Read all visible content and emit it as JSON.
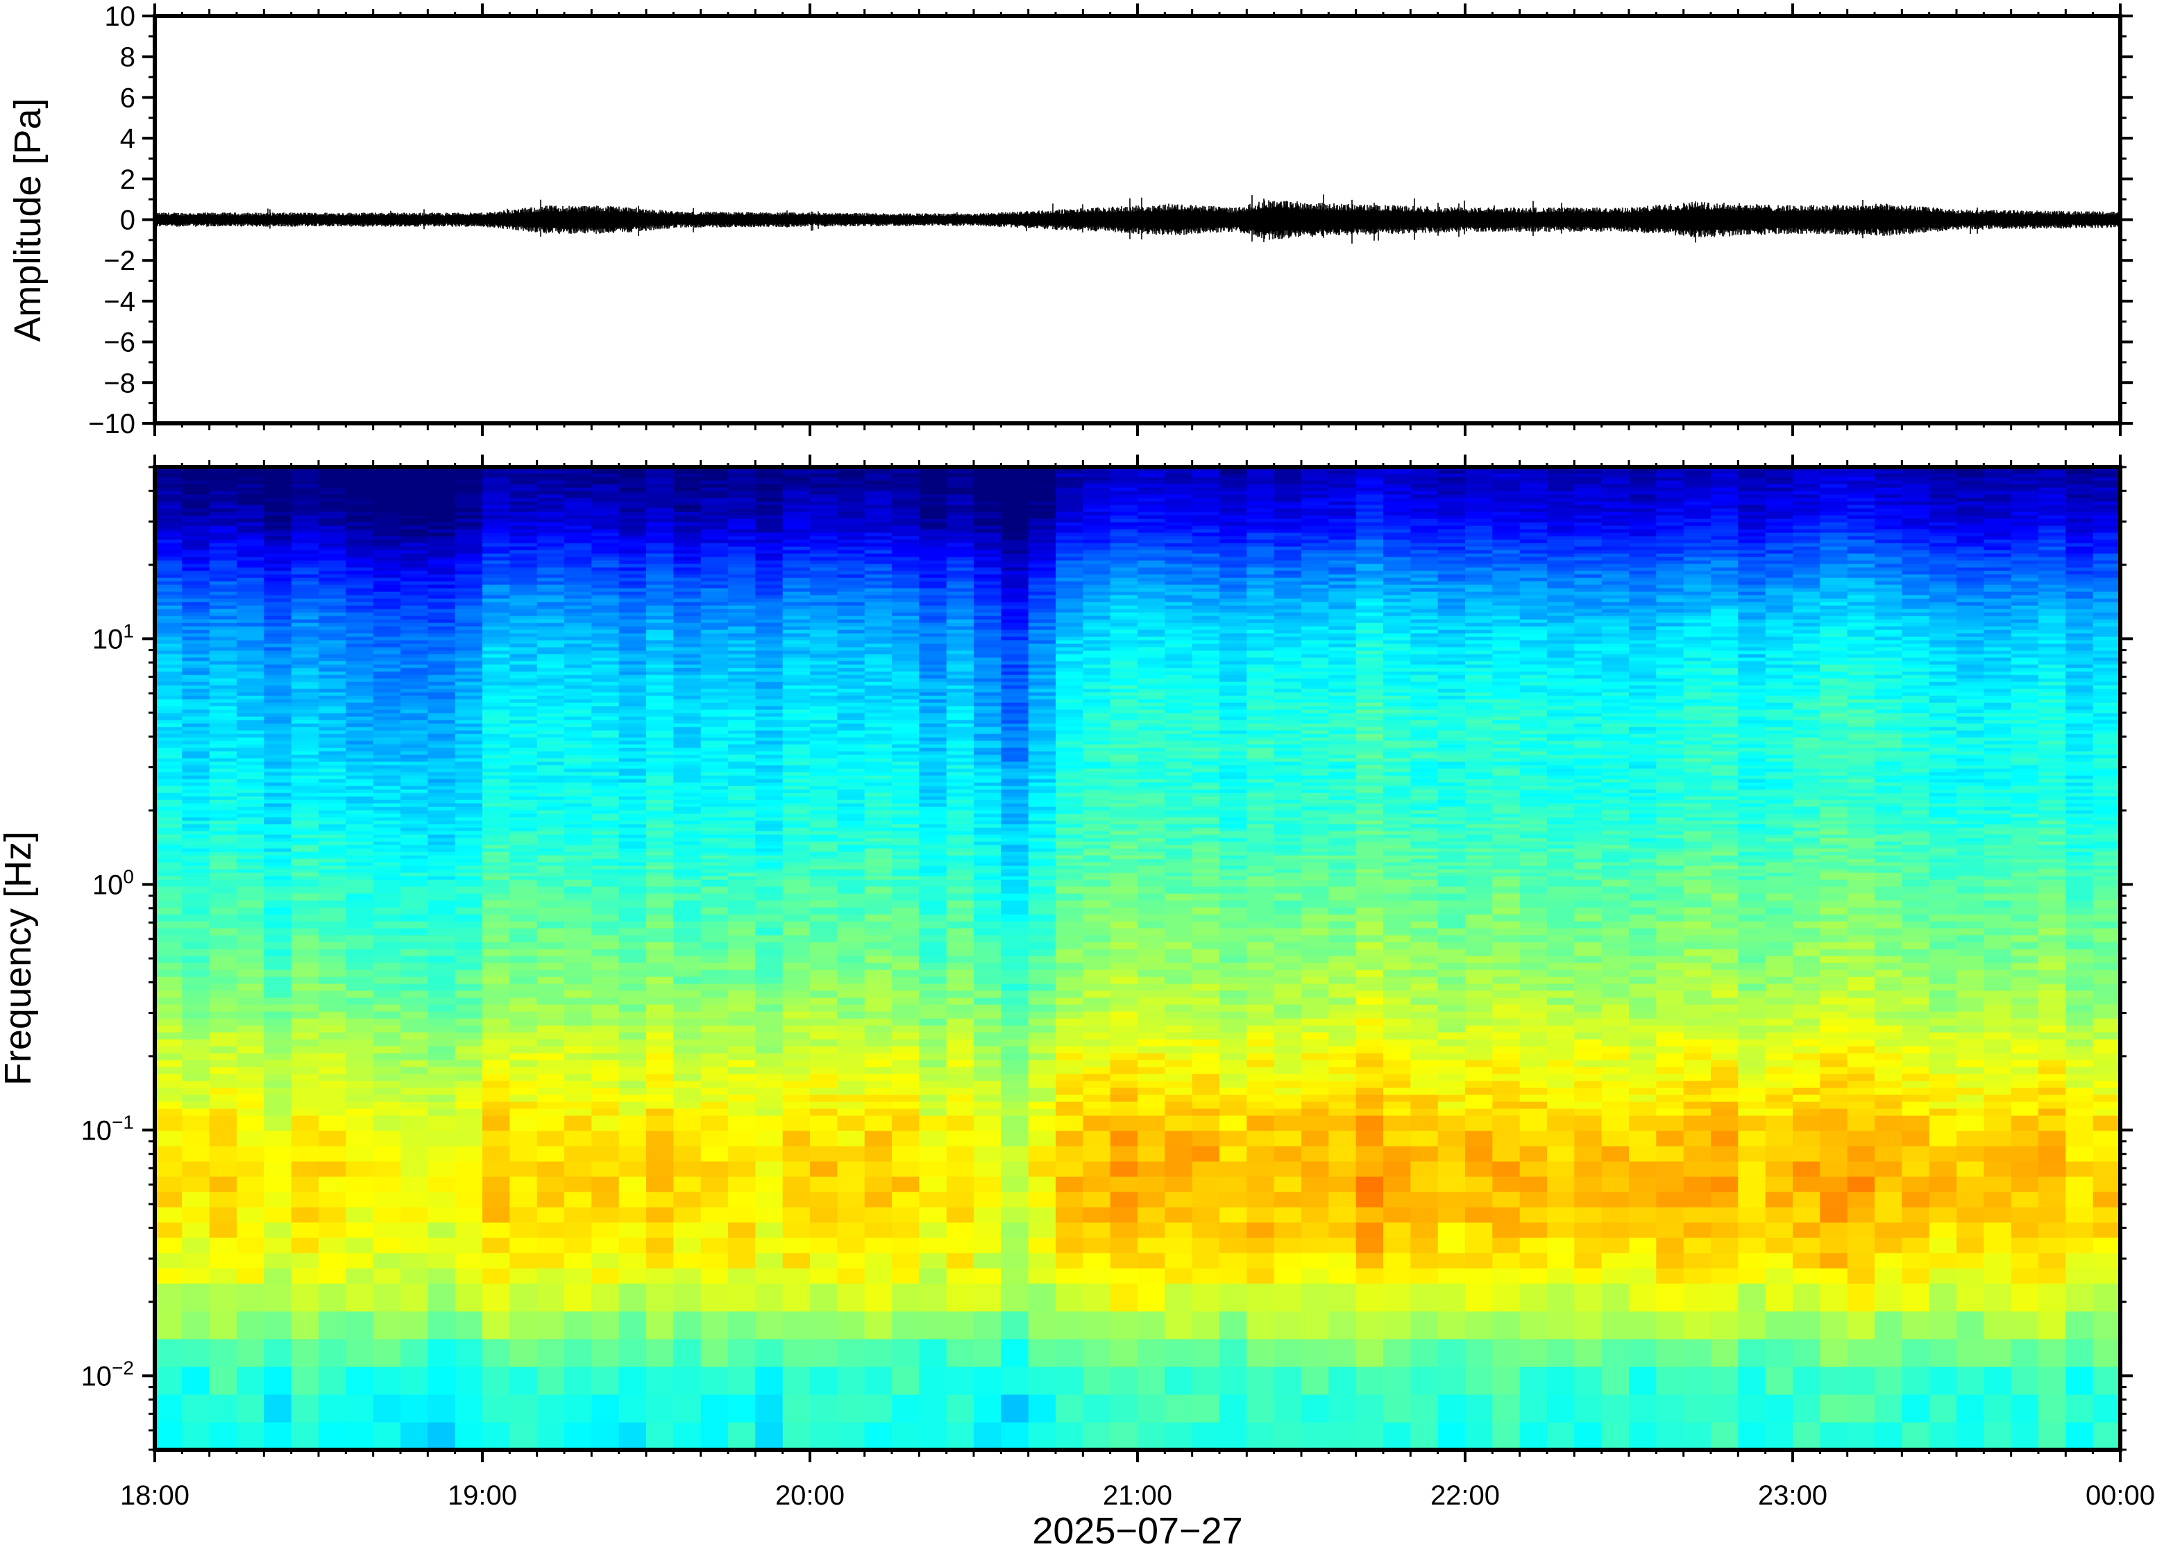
{
  "chart_data": [
    {
      "type": "line",
      "panel": "waveform",
      "ylabel": "Amplitude [Pa]",
      "ylim": [
        -10,
        10
      ],
      "yticks": [
        10,
        8,
        6,
        4,
        2,
        0,
        -2,
        -4,
        -6,
        -8,
        -10
      ],
      "ytick_labels": [
        "10",
        "8",
        "6",
        "4",
        "2",
        "0",
        "−2",
        "−4",
        "−6",
        "−8",
        "−10"
      ],
      "x_range": [
        "18:00",
        "00:00"
      ],
      "trace_color": "#000000",
      "envelope": {
        "x_hours": [
          18.0,
          18.5,
          19.0,
          19.2,
          19.4,
          19.6,
          20.0,
          20.5,
          21.0,
          21.1,
          21.3,
          21.4,
          21.6,
          21.8,
          22.0,
          22.5,
          22.7,
          23.0,
          23.3,
          23.5,
          24.0
        ],
        "y_max": [
          0.35,
          0.35,
          0.35,
          0.7,
          0.7,
          0.4,
          0.35,
          0.3,
          0.7,
          0.8,
          0.6,
          1.0,
          0.8,
          0.7,
          0.6,
          0.6,
          0.9,
          0.7,
          0.8,
          0.5,
          0.4
        ]
      }
    },
    {
      "type": "heatmap",
      "panel": "spectrogram",
      "ylabel": "Frequency [Hz]",
      "xlabel": "2025−07−27",
      "yscale": "log",
      "ylim": [
        0.005,
        50
      ],
      "yticks": [
        0.01,
        0.1,
        1,
        10
      ],
      "ytick_labels": [
        {
          "base": "10",
          "exp": "−2"
        },
        {
          "base": "10",
          "exp": "−1"
        },
        {
          "base": "10",
          "exp": "0"
        },
        {
          "base": "10",
          "exp": "1"
        }
      ],
      "xticks": [
        "18:00",
        "19:00",
        "20:00",
        "21:00",
        "22:00",
        "23:00",
        "00:00"
      ],
      "colormap": [
        "#00007f",
        "#0000ff",
        "#007fff",
        "#00ffff",
        "#7fff7f",
        "#ffff00",
        "#ff7f00",
        "#ff0000"
      ],
      "mean_level_profile": {
        "freq_hz": [
          0.005,
          0.008,
          0.012,
          0.02,
          0.04,
          0.06,
          0.1,
          0.2,
          0.3,
          0.5,
          1,
          2,
          5,
          10,
          15,
          20,
          30,
          50
        ],
        "level": [
          0.45,
          0.47,
          0.55,
          0.68,
          0.74,
          0.76,
          0.73,
          0.66,
          0.6,
          0.55,
          0.5,
          0.44,
          0.4,
          0.34,
          0.27,
          0.2,
          0.08,
          0.0
        ]
      },
      "time_activity": {
        "x_hours": [
          18.0,
          18.5,
          18.75,
          19.0,
          19.25,
          19.5,
          20.0,
          20.5,
          20.6,
          20.75,
          21.0,
          21.25,
          21.5,
          21.7,
          22.0,
          22.5,
          23.0,
          23.3,
          23.5,
          24.0
        ],
        "offset": [
          0.0,
          -0.03,
          -0.07,
          0.0,
          0.03,
          0.0,
          0.0,
          -0.02,
          -0.08,
          0.0,
          0.04,
          0.03,
          0.04,
          0.05,
          0.04,
          0.03,
          0.04,
          0.05,
          0.02,
          0.02
        ]
      }
    }
  ]
}
